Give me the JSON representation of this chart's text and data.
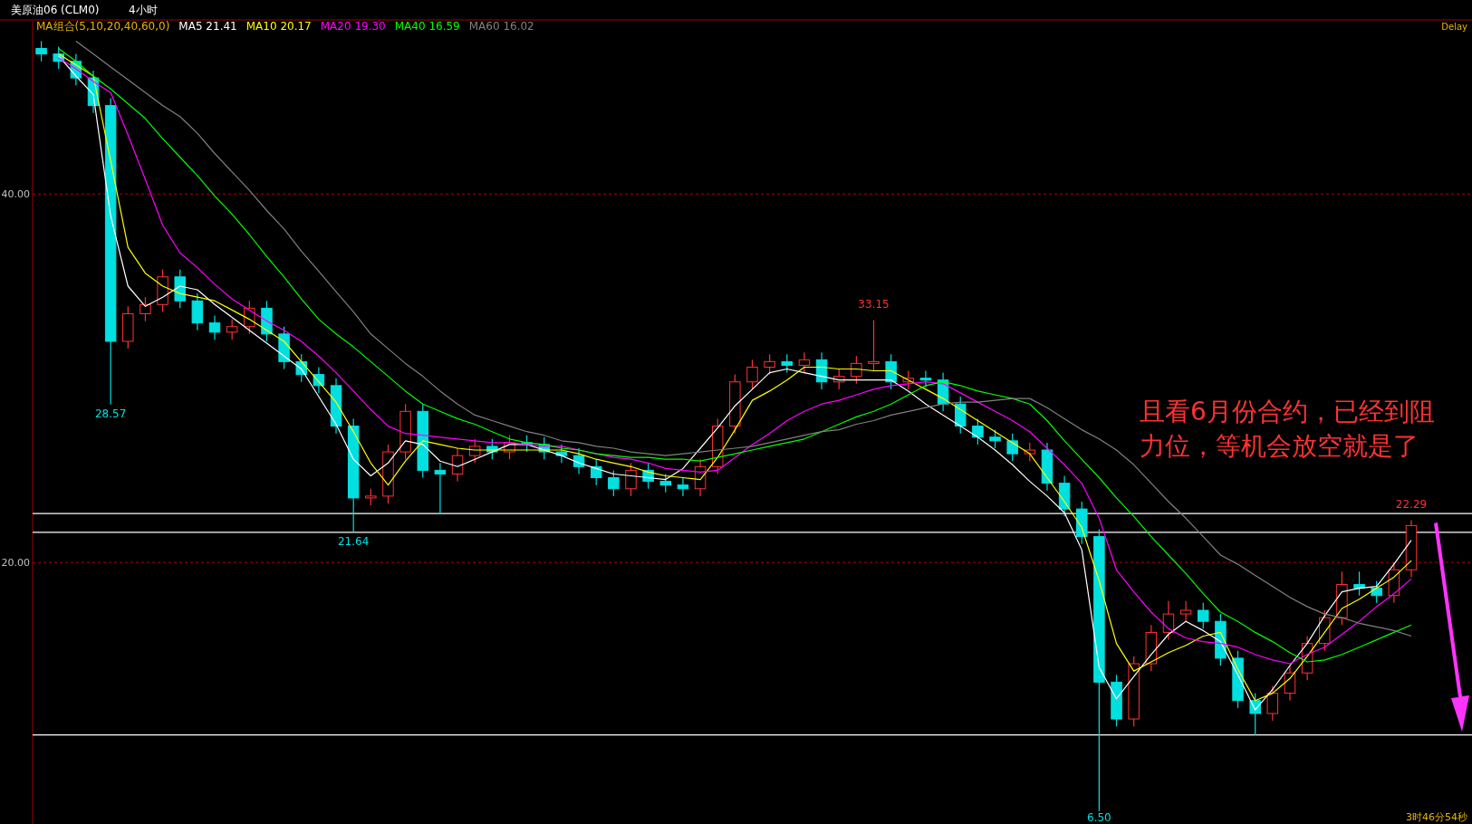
{
  "chart_data": {
    "type": "candlestick",
    "title": "美原油06 (CLM0)",
    "subtitle": "4小时",
    "legend_title": "MA组合(5,10,20,40,60,0)",
    "legend": "top left",
    "grid": "y",
    "tick_labels": "y",
    "ylim": [
      5.8,
      49.4
    ],
    "yticks": [
      {
        "value": 20,
        "label": "20.00"
      },
      {
        "value": 40,
        "label": "40.00"
      }
    ],
    "categories": [
      null,
      null,
      null,
      null,
      null,
      null,
      null,
      null,
      null,
      null,
      null,
      null,
      null,
      null,
      null,
      null,
      null,
      null,
      null,
      null,
      null,
      null,
      null,
      null,
      null,
      null,
      null,
      null,
      null,
      null,
      null,
      null,
      null,
      null,
      null,
      null,
      null,
      null,
      null,
      null,
      null,
      null,
      null,
      null,
      null,
      null,
      null,
      null,
      null,
      null,
      null,
      null,
      null,
      null,
      null,
      null,
      null,
      null,
      null,
      null,
      null,
      null,
      null,
      null,
      null,
      null,
      null,
      null,
      null,
      null,
      null,
      null,
      null,
      null,
      null,
      null,
      null,
      null,
      null,
      null
    ],
    "ohlc": [
      [
        47.9,
        48.3,
        47.2,
        47.6
      ],
      [
        47.6,
        48.0,
        46.8,
        47.2
      ],
      [
        47.2,
        47.6,
        45.9,
        46.3
      ],
      [
        46.3,
        46.7,
        44.4,
        44.8
      ],
      [
        44.8,
        45.2,
        28.57,
        32.0
      ],
      [
        32.0,
        33.9,
        31.6,
        33.5
      ],
      [
        33.5,
        34.4,
        33.1,
        34.0
      ],
      [
        34.0,
        35.9,
        33.6,
        35.5
      ],
      [
        35.5,
        35.9,
        33.8,
        34.2
      ],
      [
        34.2,
        34.6,
        32.6,
        33.0
      ],
      [
        33.0,
        33.4,
        32.1,
        32.5
      ],
      [
        32.5,
        33.2,
        32.1,
        32.8
      ],
      [
        32.8,
        34.2,
        32.4,
        33.8
      ],
      [
        33.8,
        34.2,
        32.0,
        32.4
      ],
      [
        32.4,
        32.8,
        30.5,
        30.9
      ],
      [
        30.9,
        31.3,
        29.8,
        30.2
      ],
      [
        30.2,
        30.6,
        29.2,
        29.6
      ],
      [
        29.6,
        30.0,
        27.0,
        27.4
      ],
      [
        27.4,
        27.8,
        21.64,
        23.5
      ],
      [
        23.5,
        24.0,
        23.1,
        23.6
      ],
      [
        23.6,
        26.4,
        23.2,
        26.0
      ],
      [
        26.0,
        28.6,
        25.6,
        28.2
      ],
      [
        28.2,
        28.6,
        24.6,
        25.0
      ],
      [
        25.0,
        25.4,
        22.6,
        24.8
      ],
      [
        24.8,
        26.2,
        24.4,
        25.8
      ],
      [
        25.8,
        26.7,
        25.4,
        26.3
      ],
      [
        26.3,
        26.7,
        25.6,
        26.0
      ],
      [
        26.0,
        26.9,
        25.6,
        26.5
      ],
      [
        26.5,
        26.9,
        26.0,
        26.4
      ],
      [
        26.4,
        26.8,
        25.6,
        26.0
      ],
      [
        26.0,
        26.4,
        25.4,
        25.8
      ],
      [
        25.8,
        26.2,
        24.8,
        25.2
      ],
      [
        25.2,
        25.6,
        24.2,
        24.6
      ],
      [
        24.6,
        25.0,
        23.6,
        24.0
      ],
      [
        24.0,
        25.4,
        23.6,
        25.0
      ],
      [
        25.0,
        25.4,
        24.0,
        24.4
      ],
      [
        24.4,
        24.8,
        23.8,
        24.2
      ],
      [
        24.2,
        24.6,
        23.6,
        24.0
      ],
      [
        24.0,
        25.6,
        23.6,
        25.2
      ],
      [
        25.2,
        27.8,
        24.8,
        27.4
      ],
      [
        27.4,
        30.2,
        27.0,
        29.8
      ],
      [
        29.8,
        31.0,
        29.4,
        30.6
      ],
      [
        30.6,
        31.3,
        30.2,
        30.9
      ],
      [
        30.9,
        31.3,
        30.3,
        30.7
      ],
      [
        30.7,
        31.4,
        30.3,
        31.0
      ],
      [
        31.0,
        31.4,
        29.4,
        29.8
      ],
      [
        29.8,
        30.5,
        29.4,
        30.1
      ],
      [
        30.1,
        31.2,
        29.7,
        30.8
      ],
      [
        30.8,
        33.15,
        30.4,
        30.9
      ],
      [
        30.9,
        31.3,
        29.4,
        29.8
      ],
      [
        29.8,
        30.4,
        29.4,
        30.0
      ],
      [
        30.0,
        30.4,
        29.5,
        29.9
      ],
      [
        29.9,
        30.3,
        28.2,
        28.6
      ],
      [
        28.6,
        29.0,
        27.0,
        27.4
      ],
      [
        27.4,
        27.8,
        26.4,
        26.8
      ],
      [
        26.8,
        27.2,
        26.2,
        26.6
      ],
      [
        26.6,
        27.0,
        25.5,
        25.9
      ],
      [
        25.9,
        26.5,
        25.5,
        26.1
      ],
      [
        26.1,
        26.5,
        23.9,
        24.3
      ],
      [
        24.3,
        24.7,
        22.5,
        22.9
      ],
      [
        22.9,
        23.3,
        21.0,
        21.4
      ],
      [
        21.4,
        21.8,
        6.5,
        13.5
      ],
      [
        13.5,
        13.9,
        11.1,
        11.5
      ],
      [
        11.5,
        14.9,
        11.1,
        14.5
      ],
      [
        14.5,
        16.6,
        14.1,
        16.2
      ],
      [
        16.2,
        17.9,
        15.8,
        17.2
      ],
      [
        17.2,
        17.9,
        16.8,
        17.4
      ],
      [
        17.4,
        17.8,
        16.4,
        16.8
      ],
      [
        16.8,
        17.2,
        14.4,
        14.8
      ],
      [
        14.8,
        15.2,
        12.1,
        12.5
      ],
      [
        12.5,
        12.9,
        10.6,
        11.8
      ],
      [
        11.8,
        13.3,
        11.4,
        12.9
      ],
      [
        12.9,
        14.4,
        12.5,
        14.0
      ],
      [
        14.0,
        16.0,
        13.6,
        15.6
      ],
      [
        15.6,
        17.4,
        15.2,
        17.0
      ],
      [
        17.0,
        19.5,
        16.6,
        18.8
      ],
      [
        18.8,
        19.5,
        18.2,
        18.6
      ],
      [
        18.6,
        19.0,
        17.8,
        18.2
      ],
      [
        18.2,
        20.0,
        17.8,
        19.6
      ],
      [
        19.6,
        22.29,
        19.2,
        22.0
      ]
    ],
    "series": [
      {
        "type": "line",
        "name": "MA5 21.41",
        "color": "#ffffff",
        "values": [
          null,
          47.5,
          46.4,
          45.4,
          38.8,
          35.0,
          33.9,
          34.4,
          35.0,
          34.8,
          34.0,
          33.3,
          32.6,
          31.9,
          31.2,
          30.5,
          29.0,
          27.5,
          25.6,
          24.7,
          25.4,
          26.6,
          26.4,
          25.5,
          25.2,
          25.6,
          26.0,
          26.4,
          26.4,
          26.1,
          25.8,
          25.4,
          25.1,
          24.8,
          24.7,
          24.6,
          24.5,
          25.1,
          26.2,
          27.3,
          28.5,
          29.4,
          30.3,
          30.5,
          30.3,
          30.1,
          29.9,
          29.9,
          29.9,
          29.9,
          29.3,
          28.6,
          28.0,
          27.4,
          26.8,
          26.1,
          25.3,
          24.4,
          23.6,
          22.7,
          20.7,
          14.3,
          12.6,
          13.8,
          15.0,
          16.1,
          16.8,
          16.3,
          15.7,
          13.9,
          12.0,
          13.1,
          14.4,
          15.6,
          17.1,
          18.4,
          18.6,
          18.7,
          19.9,
          21.2
        ]
      },
      {
        "type": "line",
        "name": "MA10 20.17",
        "color": "#ffff00",
        "values": [
          null,
          47.6,
          47.0,
          46.4,
          41.8,
          37.1,
          35.7,
          35.0,
          34.6,
          34.4,
          34.2,
          33.7,
          33.2,
          32.6,
          32.0,
          30.9,
          29.8,
          28.7,
          27.1,
          25.4,
          24.2,
          25.5,
          26.6,
          26.4,
          26.2,
          26.1,
          26.1,
          26.1,
          26.1,
          26.1,
          26.1,
          25.9,
          25.6,
          25.4,
          25.2,
          24.9,
          24.7,
          24.6,
          24.5,
          25.7,
          27.2,
          28.8,
          29.3,
          29.9,
          30.6,
          30.6,
          30.5,
          30.5,
          30.4,
          30.4,
          29.9,
          29.4,
          28.9,
          28.3,
          27.7,
          27.1,
          26.5,
          25.9,
          24.6,
          23.3,
          21.9,
          19.0,
          15.6,
          14.1,
          14.6,
          15.1,
          15.5,
          16.0,
          16.2,
          14.2,
          12.5,
          12.9,
          13.7,
          14.9,
          16.2,
          17.5,
          18.0,
          18.6,
          19.2,
          20.1
        ]
      },
      {
        "type": "line",
        "name": "MA20 19.30",
        "color": "#ff00ff",
        "values": [
          null,
          47.4,
          46.8,
          46.1,
          45.5,
          43.2,
          40.8,
          38.3,
          36.8,
          36.0,
          35.1,
          34.3,
          33.7,
          33.1,
          32.6,
          32.0,
          31.2,
          30.3,
          29.3,
          28.3,
          27.4,
          27.0,
          26.9,
          26.8,
          26.7,
          26.6,
          26.5,
          26.5,
          26.4,
          26.3,
          26.3,
          26.1,
          25.9,
          25.7,
          25.6,
          25.4,
          25.1,
          25.0,
          24.9,
          25.0,
          25.7,
          26.4,
          27.0,
          27.7,
          28.2,
          28.6,
          28.8,
          29.1,
          29.4,
          29.6,
          29.7,
          29.8,
          29.7,
          29.2,
          28.7,
          28.2,
          27.7,
          27.1,
          26.2,
          25.3,
          24.3,
          22.4,
          19.6,
          18.4,
          17.3,
          16.4,
          15.9,
          15.7,
          15.6,
          15.4,
          15.0,
          14.7,
          14.5,
          15.0,
          15.4,
          16.1,
          16.8,
          17.6,
          18.3,
          19.1
        ]
      },
      {
        "type": "line",
        "name": "MA40 16.59",
        "color": "#00ff00",
        "values": [
          null,
          47.9,
          47.2,
          46.4,
          45.7,
          44.9,
          44.1,
          43.0,
          42.0,
          41.0,
          39.9,
          38.9,
          37.8,
          36.6,
          35.5,
          34.3,
          33.2,
          32.4,
          31.7,
          30.9,
          30.1,
          29.3,
          28.6,
          28.2,
          27.8,
          27.5,
          27.1,
          26.7,
          26.5,
          26.4,
          26.2,
          26.1,
          25.9,
          25.8,
          25.7,
          25.7,
          25.6,
          25.6,
          25.5,
          25.7,
          25.9,
          26.1,
          26.3,
          26.5,
          26.7,
          27.1,
          27.5,
          27.9,
          28.2,
          28.6,
          29.1,
          29.6,
          29.8,
          29.6,
          29.3,
          29.1,
          28.9,
          28.6,
          27.7,
          26.6,
          25.6,
          24.6,
          23.5,
          22.5,
          21.4,
          20.4,
          19.4,
          18.3,
          17.3,
          16.8,
          16.2,
          15.7,
          15.1,
          14.6,
          14.7,
          15.0,
          15.4,
          15.8,
          16.2,
          16.6
        ]
      },
      {
        "type": "line",
        "name": "MA60 16.02",
        "color": "#808080",
        "values": [
          null,
          null,
          48.3,
          47.6,
          46.9,
          46.2,
          45.5,
          44.8,
          44.2,
          43.3,
          42.2,
          41.2,
          40.2,
          39.1,
          38.1,
          36.9,
          35.8,
          34.7,
          33.6,
          32.4,
          31.6,
          30.8,
          30.1,
          29.3,
          28.6,
          28.0,
          27.7,
          27.4,
          27.1,
          26.9,
          26.6,
          26.5,
          26.3,
          26.2,
          26.0,
          25.9,
          25.8,
          25.9,
          26.0,
          26.1,
          26.2,
          26.3,
          26.5,
          26.7,
          26.9,
          27.1,
          27.2,
          27.5,
          27.7,
          28.0,
          28.2,
          28.4,
          28.6,
          28.7,
          28.7,
          28.8,
          28.9,
          28.9,
          28.4,
          27.8,
          27.2,
          26.7,
          26.1,
          25.3,
          24.3,
          23.3,
          22.4,
          21.4,
          20.4,
          19.9,
          19.3,
          18.7,
          18.1,
          17.6,
          17.2,
          17.0,
          16.7,
          16.5,
          16.3,
          16.0
        ]
      }
    ],
    "ref_lines": [
      {
        "axis": "y",
        "value": 22.65,
        "color": "#ffffff"
      },
      {
        "axis": "y",
        "value": 21.63,
        "color": "#ffffff"
      },
      {
        "axis": "y",
        "value": 10.64,
        "color": "#ffffff"
      }
    ],
    "annotations": [
      "且看6月份合约，已经到阻力位，等机会放空就是了",
      "Delay",
      "3时46分54秒",
      {
        "text": "28.57",
        "y": 28.57
      },
      {
        "text": "21.64",
        "y": 21.64
      },
      {
        "text": "33.15",
        "y": 33.15
      },
      {
        "text": "6.50",
        "y": 6.5
      },
      {
        "text": "22.29",
        "y": 22.29
      }
    ]
  }
}
